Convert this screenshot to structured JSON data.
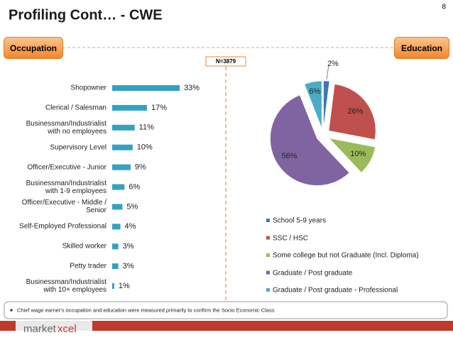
{
  "page_number": "8",
  "title": "Profiling Cont… - CWE",
  "left_header": "Occupation",
  "right_header": "Education",
  "sample_size": "N=3879",
  "footnote": "Chief wage earner's occupation and education were measured primarily to confirm the Socio Economic Class",
  "logo": [
    "market",
    "xcel"
  ],
  "chart_data": [
    {
      "type": "bar",
      "orientation": "horizontal",
      "color": "#31a2c0",
      "categories": [
        "Shopowner",
        "Clerical / Salesman",
        "Businessman/Industrialist with no employees",
        "Supervisory Level",
        "Officer/Executive - Junior",
        "Businessman/Industrialist with 1-9 employees",
        "Officer/Executive - Middle / Senior",
        "Self-Employed Professional",
        "Skilled worker",
        "Petty trader",
        "Businessman/Industrialist with 10+ employees"
      ],
      "values": [
        33,
        17,
        11,
        10,
        9,
        6,
        5,
        4,
        3,
        3,
        1
      ],
      "value_labels": [
        "33%",
        "17%",
        "11%",
        "10%",
        "9%",
        "6%",
        "5%",
        "4%",
        "3%",
        "3%",
        "1%"
      ]
    },
    {
      "type": "pie",
      "legend": "bottom",
      "series": [
        {
          "name": "School 5-9 years",
          "color": "#3f76b9",
          "value": 2,
          "value_label": "2%"
        },
        {
          "name": "SSC / HSC",
          "color": "#c0504d",
          "value": 26,
          "value_label": "26%"
        },
        {
          "name": "Some college but not Graduate (Incl. Diploma)",
          "color": "#9bbb59",
          "value": 10,
          "value_label": "10%"
        },
        {
          "name": "Graduate / Post graduate",
          "color": "#8064a2",
          "value": 56,
          "value_label": "56%"
        },
        {
          "name": "Graduate / Post graduate - Professional",
          "color": "#4bacc6",
          "value": 6,
          "value_label": "6%"
        }
      ]
    }
  ]
}
